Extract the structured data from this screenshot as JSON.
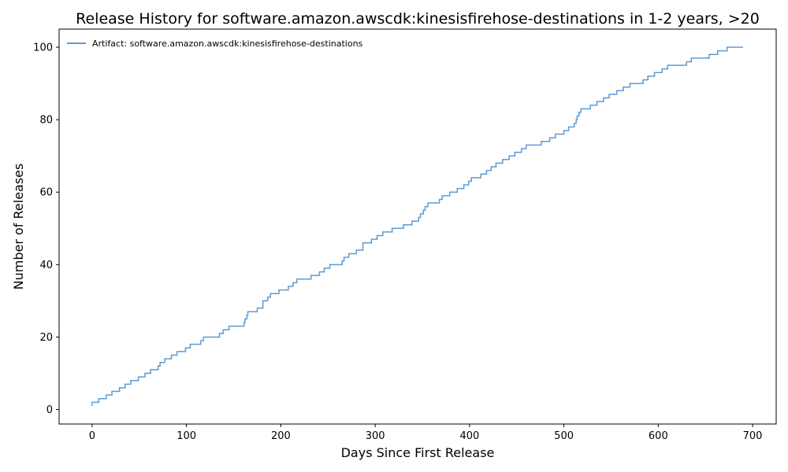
{
  "chart_data": {
    "type": "line",
    "title": "Release History for software.amazon.awscdk:kinesisfirehose-destinations in 1-2 years, >20",
    "xlabel": "Days Since First Release",
    "ylabel": "Number of Releases",
    "xlim": [
      -35,
      725
    ],
    "ylim": [
      -4,
      105
    ],
    "xticks": [
      0,
      100,
      200,
      300,
      400,
      500,
      600,
      700
    ],
    "yticks": [
      0,
      20,
      40,
      60,
      80,
      100
    ],
    "grid": false,
    "legend_position": "top-left",
    "series": [
      {
        "name": "Artifact: software.amazon.awscdk:kinesisfirehose-destinations",
        "color": "#5b9bd5",
        "step": true,
        "x": [
          0,
          0,
          7,
          15,
          21,
          29,
          35,
          41,
          49,
          56,
          62,
          70,
          72,
          77,
          84,
          90,
          99,
          104,
          115,
          118,
          125,
          135,
          139,
          145,
          161,
          162,
          164,
          165,
          167,
          175,
          181,
          186,
          189,
          198,
          208,
          213,
          217,
          224,
          232,
          241,
          246,
          252,
          265,
          267,
          272,
          280,
          287,
          296,
          302,
          308,
          318,
          330,
          339,
          346,
          348,
          351,
          353,
          356,
          368,
          371,
          379,
          387,
          394,
          399,
          402,
          412,
          418,
          423,
          428,
          435,
          442,
          448,
          455,
          460,
          476,
          485,
          491,
          500,
          505,
          511,
          513,
          514,
          516,
          517,
          518,
          522,
          528,
          535,
          542,
          548,
          556,
          563,
          570,
          577,
          584,
          589,
          596,
          604,
          610,
          630,
          635,
          654,
          663,
          673,
          690
        ],
        "y": [
          1,
          2,
          3,
          4,
          5,
          6,
          7,
          8,
          9,
          10,
          11,
          12,
          13,
          14,
          15,
          16,
          17,
          18,
          19,
          20,
          20,
          21,
          22,
          23,
          24,
          25,
          26,
          27,
          27,
          28,
          30,
          31,
          32,
          33,
          34,
          35,
          36,
          36,
          37,
          38,
          39,
          40,
          41,
          42,
          43,
          44,
          46,
          47,
          48,
          49,
          50,
          51,
          52,
          53,
          54,
          55,
          56,
          57,
          58,
          59,
          60,
          61,
          62,
          63,
          64,
          65,
          66,
          67,
          68,
          69,
          70,
          71,
          72,
          73,
          74,
          75,
          76,
          77,
          78,
          79,
          80,
          81,
          82,
          82,
          83,
          83,
          84,
          85,
          86,
          87,
          88,
          89,
          90,
          90,
          91,
          92,
          93,
          94,
          95,
          96,
          97,
          98,
          99,
          100,
          100
        ]
      }
    ]
  }
}
